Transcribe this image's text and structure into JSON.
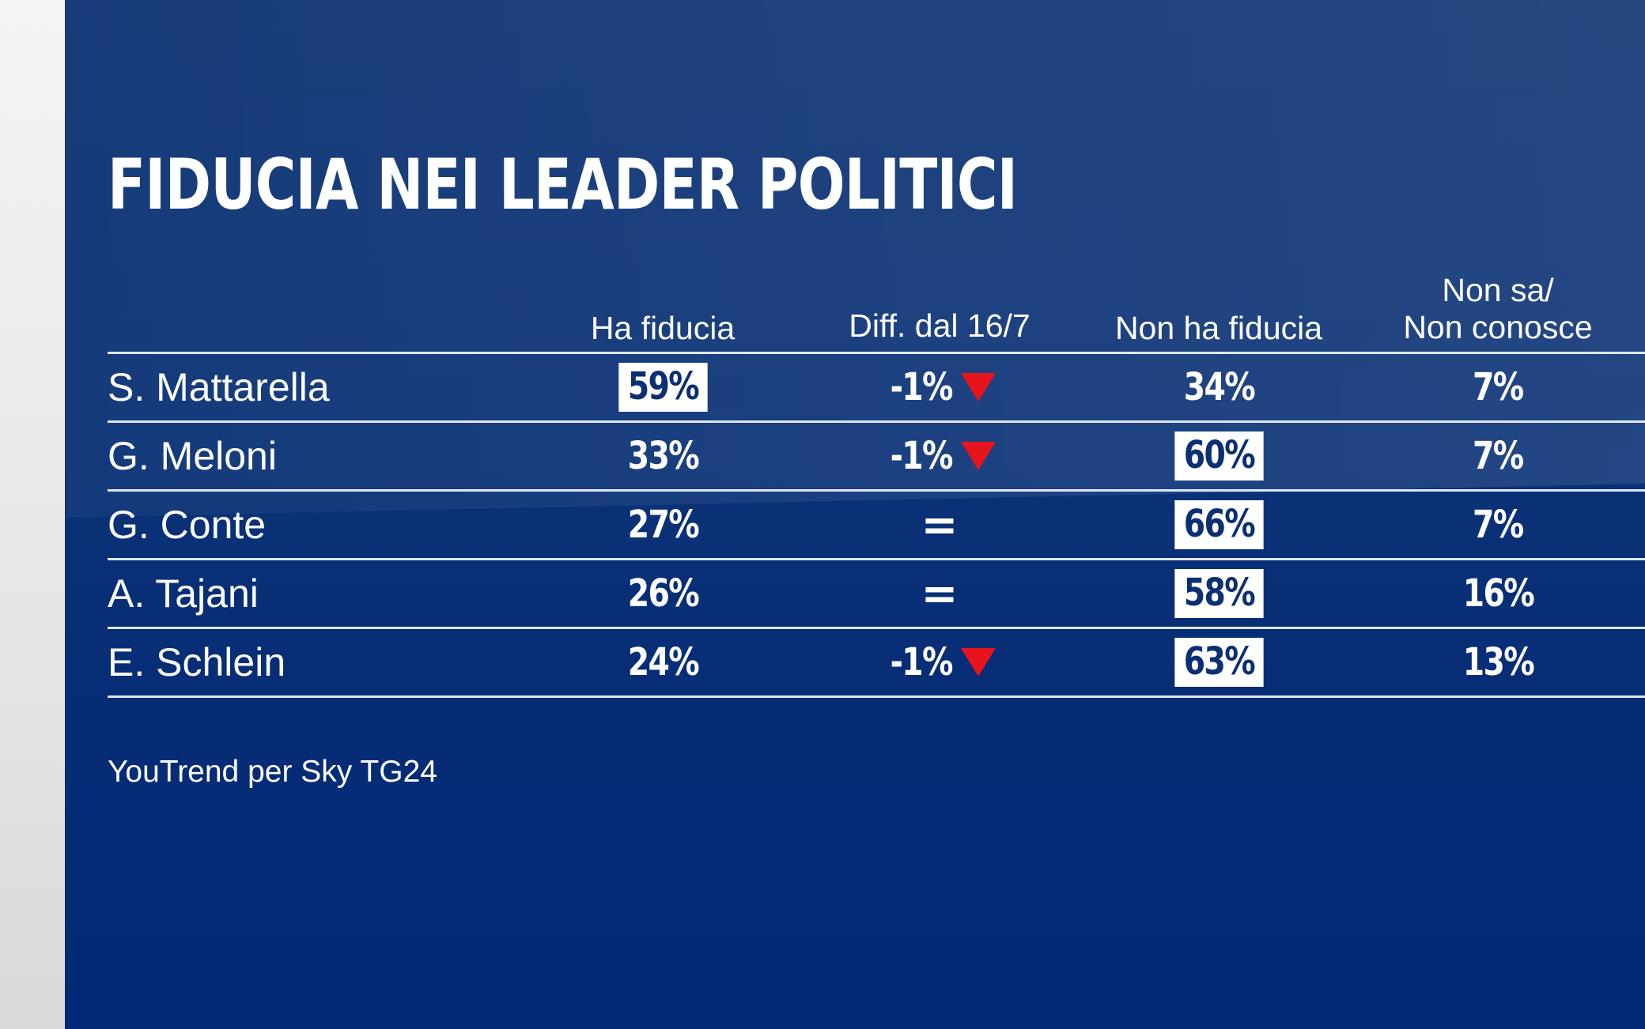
{
  "title": "FIDUCIA NEI LEADER POLITICI",
  "source": "YouTrend per Sky TG24",
  "colors": {
    "background": "#0b3276",
    "down_arrow": "#e8141c",
    "box": "#ffffff"
  },
  "columns": [
    "Ha fiducia",
    "Diff. dal 16/7",
    "Non ha fiducia",
    "Non sa/\nNon conosce"
  ],
  "columns_split": {
    "c4_line1": "Non sa/",
    "c4_line2": "Non conosce"
  },
  "chart_data": {
    "type": "table",
    "title": "FIDUCIA NEI LEADER POLITICI",
    "columns": [
      "",
      "Ha fiducia",
      "Diff. dal 16/7",
      "Non ha fiducia",
      "Non sa/ Non conosce"
    ],
    "rows": [
      {
        "name": "S. Mattarella",
        "ha_fiducia": "59%",
        "diff": "-1%",
        "diff_dir": "down",
        "non_ha_fiducia": "34%",
        "non_sa": "7%",
        "highlight": "ha_fiducia"
      },
      {
        "name": "G. Meloni",
        "ha_fiducia": "33%",
        "diff": "-1%",
        "diff_dir": "down",
        "non_ha_fiducia": "60%",
        "non_sa": "7%",
        "highlight": "non_ha_fiducia"
      },
      {
        "name": "G. Conte",
        "ha_fiducia": "27%",
        "diff": "=",
        "diff_dir": "same",
        "non_ha_fiducia": "66%",
        "non_sa": "7%",
        "highlight": "non_ha_fiducia"
      },
      {
        "name": "A. Tajani",
        "ha_fiducia": "26%",
        "diff": "=",
        "diff_dir": "same",
        "non_ha_fiducia": "58%",
        "non_sa": "16%",
        "highlight": "non_ha_fiducia"
      },
      {
        "name": "E. Schlein",
        "ha_fiducia": "24%",
        "diff": "-1%",
        "diff_dir": "down",
        "non_ha_fiducia": "63%",
        "non_sa": "13%",
        "highlight": "non_ha_fiducia"
      }
    ]
  }
}
